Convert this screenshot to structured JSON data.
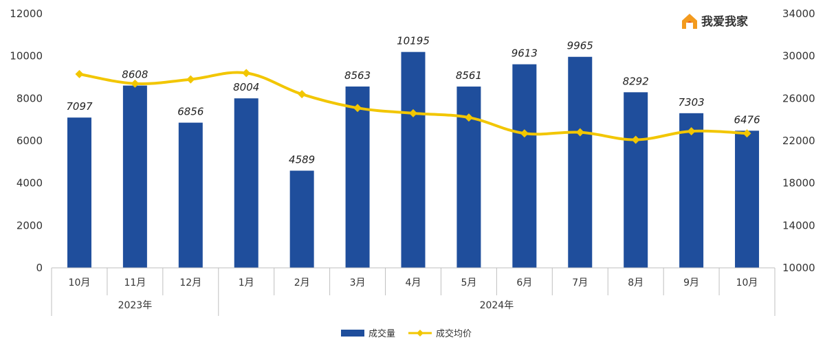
{
  "logo": {
    "text": "我爱我家",
    "icon": "house-logo-icon"
  },
  "chart_data": {
    "type": "bar",
    "categories": [
      "10月",
      "11月",
      "12月",
      "1月",
      "2月",
      "3月",
      "4月",
      "5月",
      "6月",
      "7月",
      "8月",
      "9月",
      "10月"
    ],
    "year_groups": [
      {
        "label": "2023年",
        "start": 0,
        "end": 2
      },
      {
        "label": "2024年",
        "start": 3,
        "end": 12
      }
    ],
    "series": [
      {
        "name": "成交量",
        "type": "bar",
        "axis": "left",
        "color": "#1f4e9c",
        "values": [
          7097,
          8608,
          6856,
          8004,
          4589,
          8563,
          10195,
          8561,
          9613,
          9965,
          8292,
          7303,
          6476
        ],
        "data_labels": [
          "7097",
          "8608",
          "6856",
          "8004",
          "4589",
          "8563",
          "10195",
          "8561",
          "9613",
          "9965",
          "8292",
          "7303",
          "6476"
        ]
      },
      {
        "name": "成交均价",
        "type": "line",
        "axis": "right",
        "color": "#f2c600",
        "values": [
          28300,
          27400,
          27800,
          28400,
          26400,
          25100,
          24600,
          24200,
          22700,
          22800,
          22100,
          22900,
          22700
        ]
      }
    ],
    "left_axis": {
      "ylim": [
        0,
        12000
      ],
      "ticks": [
        "0",
        "2000",
        "4000",
        "6000",
        "8000",
        "10000",
        "12000"
      ]
    },
    "right_axis": {
      "ylim": [
        10000,
        34000
      ],
      "ticks": [
        "10000",
        "14000",
        "18000",
        "22000",
        "26000",
        "30000",
        "34000"
      ]
    },
    "legend_position": "bottom-center",
    "grid": false
  }
}
